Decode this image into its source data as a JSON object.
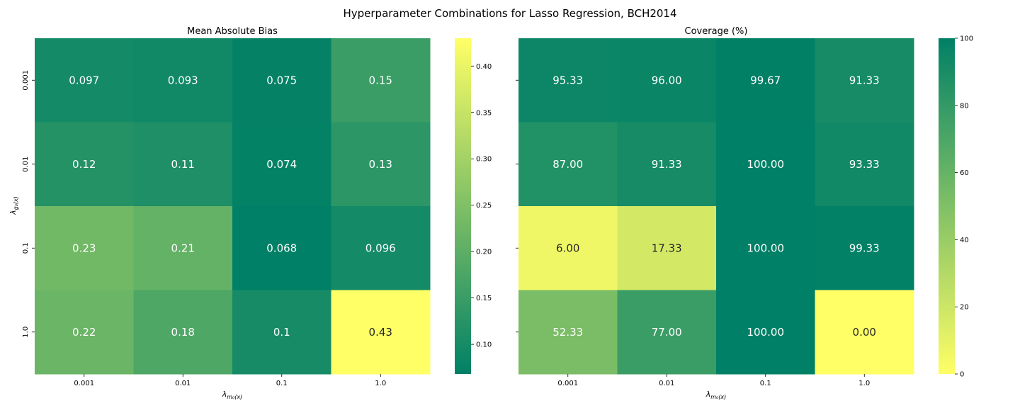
{
  "figure": {
    "suptitle": "Hyperparameter Combinations for Lasso Regression, BCH2014"
  },
  "chart_data": [
    {
      "type": "heatmap",
      "title": "Mean Absolute Bias",
      "x_ticks": [
        "0.001",
        "0.01",
        "0.1",
        "1.0"
      ],
      "y_ticks": [
        "0.001",
        "0.01",
        "0.1",
        "1.0"
      ],
      "xlabel": "λ",
      "xlabel_sub": "m₀(x)",
      "ylabel": "λ",
      "ylabel_sub": "g₀(x)",
      "values": [
        [
          0.097,
          0.093,
          0.075,
          0.15
        ],
        [
          0.12,
          0.11,
          0.074,
          0.13
        ],
        [
          0.23,
          0.21,
          0.068,
          0.096
        ],
        [
          0.22,
          0.18,
          0.1,
          0.43
        ]
      ],
      "labels": [
        [
          "0.097",
          "0.093",
          "0.075",
          "0.15"
        ],
        [
          "0.12",
          "0.11",
          "0.074",
          "0.13"
        ],
        [
          "0.23",
          "0.21",
          "0.068",
          "0.096"
        ],
        [
          "0.22",
          "0.18",
          "0.1",
          "0.43"
        ]
      ],
      "colorscale": "summer_r",
      "vmin": 0.068,
      "vmax": 0.43,
      "colorbar_ticks": [
        "0.10",
        "0.15",
        "0.20",
        "0.25",
        "0.30",
        "0.35",
        "0.40"
      ],
      "colorbar_tick_values": [
        0.1,
        0.15,
        0.2,
        0.25,
        0.3,
        0.35,
        0.4
      ],
      "colors": {
        "low": "#008066",
        "high": "#ffff66"
      }
    },
    {
      "type": "heatmap",
      "title": "Coverage (%)",
      "x_ticks": [
        "0.001",
        "0.01",
        "0.1",
        "1.0"
      ],
      "y_ticks": [
        "0.001",
        "0.01",
        "0.1",
        "1.0"
      ],
      "xlabel": "λ",
      "xlabel_sub": "m₀(x)",
      "values": [
        [
          95.33,
          96.0,
          99.67,
          91.33
        ],
        [
          87.0,
          91.33,
          100.0,
          93.33
        ],
        [
          6.0,
          17.33,
          100.0,
          99.33
        ],
        [
          52.33,
          77.0,
          100.0,
          0.0
        ]
      ],
      "labels": [
        [
          "95.33",
          "96.00",
          "99.67",
          "91.33"
        ],
        [
          "87.00",
          "91.33",
          "100.00",
          "93.33"
        ],
        [
          "6.00",
          "17.33",
          "100.00",
          "99.33"
        ],
        [
          "52.33",
          "77.00",
          "100.00",
          "0.00"
        ]
      ],
      "colorscale": "summer",
      "vmin": 0,
      "vmax": 100,
      "colorbar_ticks": [
        "0",
        "20",
        "40",
        "60",
        "80",
        "100"
      ],
      "colorbar_tick_values": [
        0,
        20,
        40,
        60,
        80,
        100
      ],
      "colors": {
        "low": "#ffff66",
        "high": "#008066"
      }
    }
  ]
}
